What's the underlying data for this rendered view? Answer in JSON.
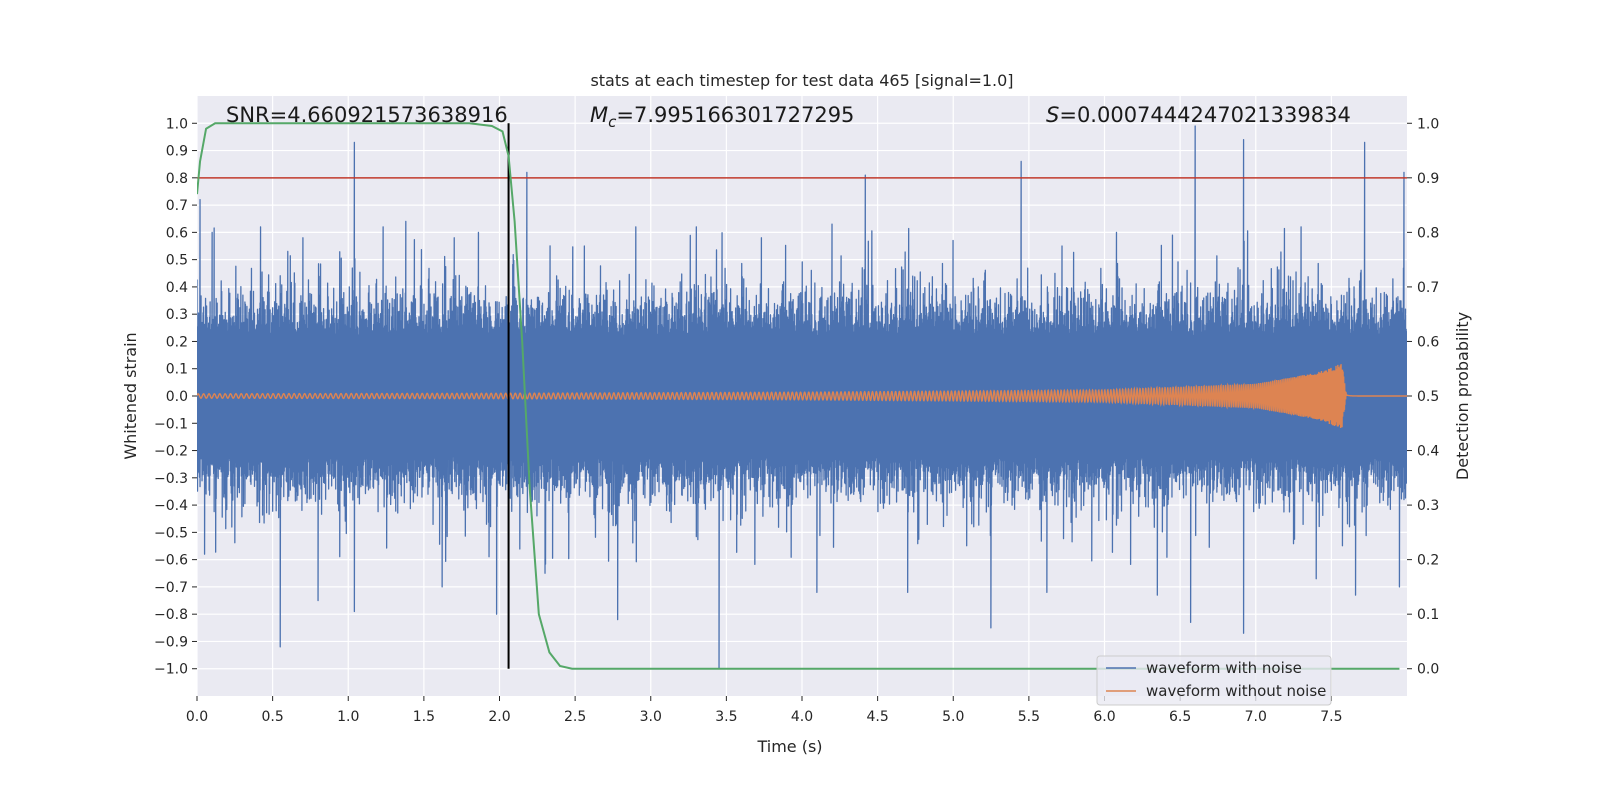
{
  "chart_data": {
    "type": "line",
    "title": "stats at each timestep for test data 465 [signal=1.0]",
    "xlabel": "Time (s)",
    "ylabel": "Whitened strain",
    "y2label": "Detection probability",
    "xlim": [
      0.0,
      8.0
    ],
    "ylim": [
      -1.1,
      1.1
    ],
    "y2lim": [
      -0.05,
      1.05
    ],
    "xticks": [
      "0.0",
      "0.5",
      "1.0",
      "1.5",
      "2.0",
      "2.5",
      "3.0",
      "3.5",
      "4.0",
      "4.5",
      "5.0",
      "5.5",
      "6.0",
      "6.5",
      "7.0",
      "7.5"
    ],
    "yticks": [
      "1.0",
      "0.9",
      "0.8",
      "0.7",
      "0.6",
      "0.5",
      "0.4",
      "0.3",
      "0.2",
      "0.1",
      "0.0",
      "−0.1",
      "−0.2",
      "−0.3",
      "−0.4",
      "−0.5",
      "−0.6",
      "−0.7",
      "−0.8",
      "−0.9",
      "−1.0"
    ],
    "y2ticks": [
      "1.0",
      "0.9",
      "0.8",
      "0.7",
      "0.6",
      "0.5",
      "0.4",
      "0.3",
      "0.2",
      "0.1",
      "0.0"
    ],
    "annotations": {
      "snr": "SNR=4.660921573638916",
      "mc_symbol": "M",
      "mc_sub": "c",
      "mc_value": "=7.995166301727295",
      "s_symbol": "S",
      "s_value": "=0.0007444247021339834"
    },
    "threshold_line": {
      "y2": 0.9,
      "color": "#c0392b"
    },
    "vertical_line": {
      "x": 2.06,
      "y_from": -1.0,
      "y_to": 1.0,
      "color": "#000000"
    },
    "series": [
      {
        "name": "waveform with noise",
        "color": "#4c72b0",
        "description": "dense whitened-strain noise, core amplitude about ±0.2 with spikes",
        "spikes_up": [
          [
            0.02,
            0.72
          ],
          [
            0.1,
            0.6
          ],
          [
            0.42,
            0.62
          ],
          [
            0.6,
            0.53
          ],
          [
            0.7,
            0.58
          ],
          [
            1.04,
            0.93
          ],
          [
            1.23,
            0.62
          ],
          [
            1.38,
            0.64
          ],
          [
            1.7,
            0.58
          ],
          [
            1.86,
            0.6
          ],
          [
            2.18,
            0.82
          ],
          [
            2.56,
            0.55
          ],
          [
            2.9,
            0.62
          ],
          [
            3.3,
            0.62
          ],
          [
            3.73,
            0.58
          ],
          [
            4.2,
            0.63
          ],
          [
            4.42,
            0.81
          ],
          [
            5.0,
            0.57
          ],
          [
            5.45,
            0.86
          ],
          [
            5.72,
            0.55
          ],
          [
            6.08,
            0.6
          ],
          [
            6.45,
            0.59
          ],
          [
            6.6,
            0.99
          ],
          [
            6.92,
            0.94
          ],
          [
            7.3,
            0.62
          ],
          [
            7.72,
            0.93
          ],
          [
            7.98,
            0.82
          ]
        ],
        "spikes_down": [
          [
            0.05,
            -0.58
          ],
          [
            0.55,
            -0.92
          ],
          [
            0.8,
            -0.75
          ],
          [
            1.04,
            -0.79
          ],
          [
            1.62,
            -0.7
          ],
          [
            1.98,
            -0.8
          ],
          [
            2.3,
            -0.65
          ],
          [
            2.78,
            -0.82
          ],
          [
            3.45,
            -1.0
          ],
          [
            4.1,
            -0.72
          ],
          [
            4.7,
            -0.72
          ],
          [
            5.25,
            -0.85
          ],
          [
            5.62,
            -0.72
          ],
          [
            6.35,
            -0.73
          ],
          [
            6.57,
            -0.83
          ],
          [
            6.92,
            -0.87
          ],
          [
            7.4,
            -0.67
          ],
          [
            7.66,
            -0.73
          ],
          [
            7.95,
            -0.7
          ]
        ]
      },
      {
        "name": "waveform without noise",
        "color": "#dd8452",
        "description": "chirp signal growing in amplitude until merger near t=7.6 s",
        "envelope": [
          [
            0.0,
            0.008
          ],
          [
            2.0,
            0.01
          ],
          [
            4.0,
            0.014
          ],
          [
            6.0,
            0.022
          ],
          [
            7.0,
            0.045
          ],
          [
            7.4,
            0.085
          ],
          [
            7.57,
            0.12
          ],
          [
            7.6,
            0.0
          ],
          [
            8.0,
            0.0
          ]
        ],
        "merger_time": 7.6
      },
      {
        "name": "detection probability",
        "color": "#55a868",
        "axis": "right",
        "x": [
          0.0,
          0.02,
          0.06,
          0.12,
          0.2,
          0.5,
          1.0,
          1.5,
          1.8,
          1.95,
          2.02,
          2.06,
          2.1,
          2.15,
          2.2,
          2.26,
          2.33,
          2.4,
          2.48,
          2.6,
          3.0,
          5.0,
          7.0,
          7.95
        ],
        "y": [
          0.87,
          0.93,
          0.99,
          1.0,
          1.0,
          1.0,
          1.0,
          1.0,
          1.0,
          0.995,
          0.985,
          0.94,
          0.82,
          0.6,
          0.33,
          0.1,
          0.03,
          0.005,
          0.0,
          0.0,
          0.0,
          0.0,
          0.0,
          0.0
        ]
      }
    ],
    "legend": {
      "placement": "lower-right",
      "entries": [
        "waveform with noise",
        "waveform without noise"
      ]
    }
  }
}
